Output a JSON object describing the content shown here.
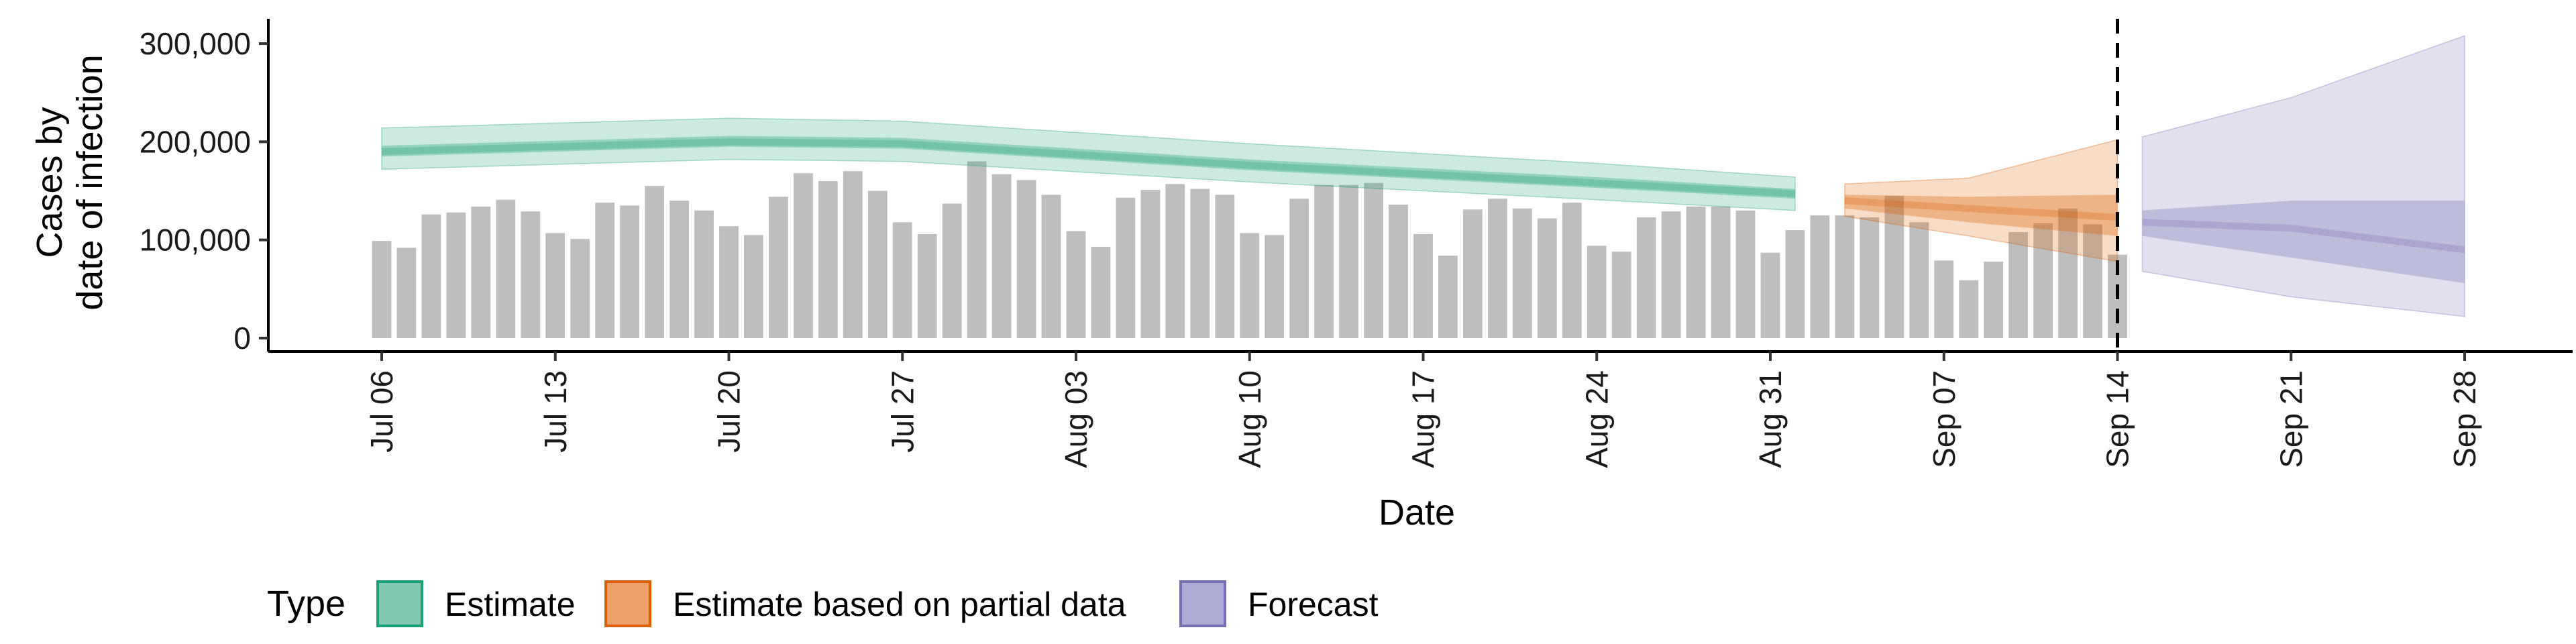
{
  "chart_data": {
    "type": "area",
    "xlabel": "Date",
    "ylabel_lines": [
      "Cases by",
      "date of infection"
    ],
    "x_range": [
      "2020-07-06",
      "2020-09-28"
    ],
    "ylim": [
      0,
      320000
    ],
    "y_ticks": [
      {
        "value": 0,
        "label": "0"
      },
      {
        "value": 100000,
        "label": "100,000"
      },
      {
        "value": 200000,
        "label": "200,000"
      },
      {
        "value": 300000,
        "label": "300,000"
      }
    ],
    "x_ticks": [
      {
        "date": "2020-07-06",
        "label": "Jul 06"
      },
      {
        "date": "2020-07-13",
        "label": "Jul 13"
      },
      {
        "date": "2020-07-20",
        "label": "Jul 20"
      },
      {
        "date": "2020-07-27",
        "label": "Jul 27"
      },
      {
        "date": "2020-08-03",
        "label": "Aug 03"
      },
      {
        "date": "2020-08-10",
        "label": "Aug 10"
      },
      {
        "date": "2020-08-17",
        "label": "Aug 17"
      },
      {
        "date": "2020-08-24",
        "label": "Aug 24"
      },
      {
        "date": "2020-08-31",
        "label": "Aug 31"
      },
      {
        "date": "2020-09-07",
        "label": "Sep 07"
      },
      {
        "date": "2020-09-14",
        "label": "Sep 14"
      },
      {
        "date": "2020-09-21",
        "label": "Sep 21"
      },
      {
        "date": "2020-09-28",
        "label": "Sep 28"
      }
    ],
    "forecast_line_date": "2020-09-14",
    "observed_cases": {
      "start_date": "2020-07-06",
      "values": [
        99000,
        92000,
        126000,
        128000,
        134000,
        141000,
        129000,
        107000,
        101000,
        138000,
        135000,
        155000,
        140000,
        130000,
        114000,
        105000,
        144000,
        168000,
        160000,
        170000,
        150000,
        118000,
        106000,
        137000,
        180000,
        167000,
        161000,
        146000,
        109000,
        93000,
        143000,
        151000,
        157000,
        152000,
        146000,
        107000,
        105000,
        142000,
        156000,
        156000,
        158000,
        136000,
        106000,
        84000,
        131000,
        142000,
        132000,
        122000,
        138000,
        94000,
        88000,
        123000,
        129000,
        134000,
        134000,
        130000,
        87000,
        110000,
        125000,
        125000,
        123000,
        145000,
        118000,
        79000,
        59000,
        78000,
        108000,
        117000,
        132000,
        116000,
        85000
      ]
    },
    "series": [
      {
        "name": "Estimate",
        "color": "#1b9e77",
        "start_date": "2020-07-06",
        "end_date": "2020-09-01",
        "knots": [
          {
            "date": "2020-07-06",
            "median": 190000,
            "q25": 185000,
            "q75": 196000,
            "lower": 172000,
            "upper": 214000
          },
          {
            "date": "2020-07-20",
            "median": 200000,
            "q25": 195000,
            "q75": 206000,
            "lower": 182000,
            "upper": 224000
          },
          {
            "date": "2020-07-27",
            "median": 198000,
            "q25": 193000,
            "q75": 204000,
            "lower": 180000,
            "upper": 221000
          },
          {
            "date": "2020-08-10",
            "median": 176000,
            "q25": 171000,
            "q75": 182000,
            "lower": 159000,
            "upper": 198000
          },
          {
            "date": "2020-08-24",
            "median": 158000,
            "q25": 153000,
            "q75": 164000,
            "lower": 141000,
            "upper": 178000
          },
          {
            "date": "2020-09-01",
            "median": 147000,
            "q25": 142000,
            "q75": 152000,
            "lower": 130000,
            "upper": 164000
          }
        ]
      },
      {
        "name": "Estimate based on partial data",
        "color": "#d95f02",
        "start_date": "2020-09-03",
        "end_date": "2020-09-14",
        "knots": [
          {
            "date": "2020-09-03",
            "median": 140000,
            "q25": 132000,
            "q75": 146000,
            "lower": 124000,
            "upper": 157000
          },
          {
            "date": "2020-09-08",
            "median": 132000,
            "q25": 118000,
            "q75": 144000,
            "lower": 104000,
            "upper": 163000
          },
          {
            "date": "2020-09-14",
            "median": 123000,
            "q25": 104000,
            "q75": 146000,
            "lower": 78000,
            "upper": 202000
          }
        ]
      },
      {
        "name": "Forecast",
        "color": "#7570b3",
        "start_date": "2020-09-15",
        "end_date": "2020-09-28",
        "knots": [
          {
            "date": "2020-09-15",
            "median": 118000,
            "q25": 104000,
            "q75": 130000,
            "lower": 68000,
            "upper": 205000
          },
          {
            "date": "2020-09-21",
            "median": 112000,
            "q25": 82000,
            "q75": 140000,
            "lower": 42000,
            "upper": 245000
          },
          {
            "date": "2020-09-28",
            "median": 90000,
            "q25": 56000,
            "q75": 140000,
            "lower": 22000,
            "upper": 308000
          }
        ]
      }
    ],
    "legend": {
      "title": "Type",
      "position": "bottom",
      "items": [
        {
          "label": "Estimate",
          "color": "#1b9e77",
          "fill": "#7fc7ae"
        },
        {
          "label": "Estimate based on partial data",
          "color": "#d95f02",
          "fill": "#eea06a"
        },
        {
          "label": "Forecast",
          "color": "#7570b3",
          "fill": "#aeaad6"
        }
      ]
    },
    "bar_color": "#bebebe",
    "grid": false
  }
}
